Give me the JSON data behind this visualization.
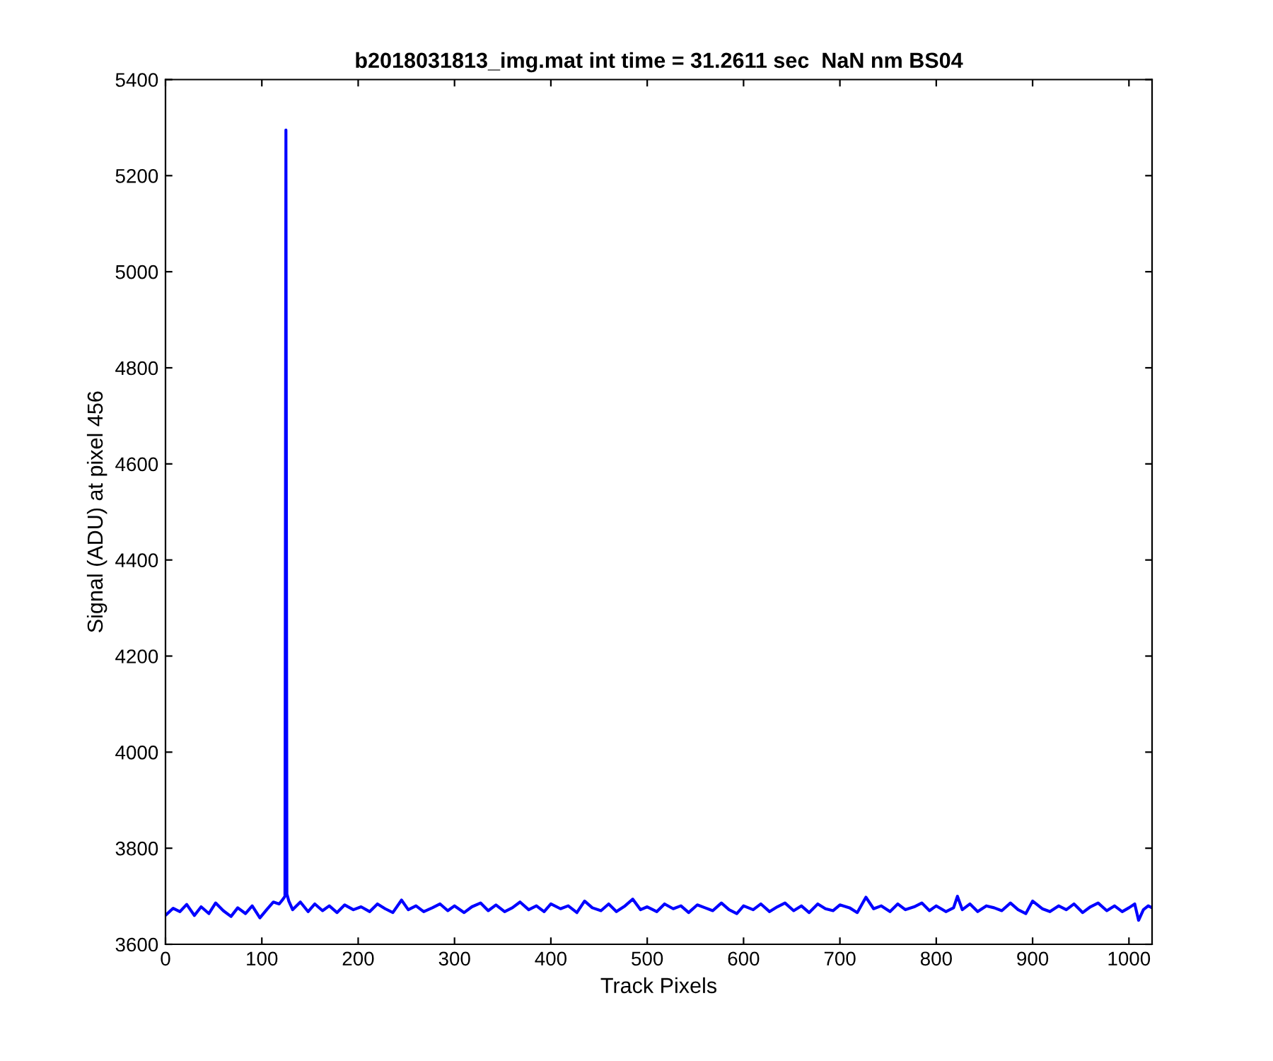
{
  "chart_data": {
    "type": "line",
    "title": "b2018031813_img.mat int time = 31.2611 sec  NaN nm BS04",
    "xlabel": "Track Pixels",
    "ylabel": "Signal (ADU) at pixel 456",
    "x": [
      1,
      8,
      15,
      22,
      30,
      37,
      45,
      52,
      60,
      68,
      75,
      83,
      90,
      98,
      105,
      112,
      118,
      122,
      124,
      125,
      126,
      128,
      132,
      140,
      148,
      155,
      163,
      170,
      178,
      186,
      195,
      203,
      212,
      220,
      228,
      236,
      245,
      252,
      260,
      268,
      277,
      285,
      293,
      300,
      310,
      318,
      327,
      335,
      343,
      352,
      360,
      368,
      377,
      385,
      393,
      400,
      410,
      418,
      427,
      435,
      443,
      452,
      460,
      468,
      477,
      485,
      493,
      500,
      510,
      518,
      527,
      535,
      543,
      552,
      560,
      568,
      577,
      585,
      593,
      600,
      610,
      618,
      627,
      635,
      643,
      652,
      660,
      668,
      677,
      685,
      693,
      700,
      710,
      718,
      727,
      735,
      743,
      752,
      760,
      768,
      777,
      785,
      793,
      800,
      810,
      818,
      822,
      827,
      835,
      843,
      852,
      860,
      868,
      877,
      885,
      893,
      900,
      910,
      918,
      927,
      935,
      943,
      952,
      960,
      968,
      977,
      985,
      993,
      1000,
      1006,
      1010,
      1015,
      1020,
      1024
    ],
    "series": [
      {
        "color": "#0000ff",
        "values": [
          3662,
          3675,
          3668,
          3683,
          3660,
          3678,
          3664,
          3686,
          3670,
          3658,
          3676,
          3664,
          3680,
          3655,
          3672,
          3688,
          3684,
          3694,
          3700,
          5295,
          3705,
          3690,
          3672,
          3688,
          3668,
          3684,
          3670,
          3680,
          3666,
          3682,
          3672,
          3678,
          3668,
          3684,
          3674,
          3666,
          3692,
          3672,
          3680,
          3668,
          3676,
          3684,
          3670,
          3680,
          3666,
          3678,
          3686,
          3670,
          3682,
          3668,
          3676,
          3688,
          3672,
          3680,
          3668,
          3684,
          3674,
          3680,
          3666,
          3690,
          3676,
          3670,
          3684,
          3668,
          3680,
          3694,
          3672,
          3678,
          3668,
          3684,
          3674,
          3680,
          3666,
          3682,
          3676,
          3670,
          3686,
          3672,
          3664,
          3680,
          3672,
          3684,
          3668,
          3678,
          3686,
          3670,
          3680,
          3666,
          3684,
          3674,
          3670,
          3682,
          3676,
          3666,
          3698,
          3674,
          3680,
          3668,
          3684,
          3672,
          3678,
          3686,
          3670,
          3680,
          3668,
          3676,
          3700,
          3672,
          3684,
          3668,
          3680,
          3676,
          3670,
          3686,
          3672,
          3664,
          3690,
          3674,
          3668,
          3680,
          3672,
          3684,
          3666,
          3678,
          3686,
          3670,
          3680,
          3668,
          3676,
          3684,
          3650,
          3672,
          3680,
          3676
        ]
      }
    ],
    "xlim": [
      0,
      1024
    ],
    "ylim": [
      3600,
      5400
    ],
    "xticks": [
      0,
      100,
      200,
      300,
      400,
      500,
      600,
      700,
      800,
      900,
      1000
    ],
    "yticks": [
      3600,
      3800,
      4000,
      4200,
      4400,
      4600,
      4800,
      5000,
      5200,
      5400
    ],
    "grid": false,
    "legend": false
  }
}
